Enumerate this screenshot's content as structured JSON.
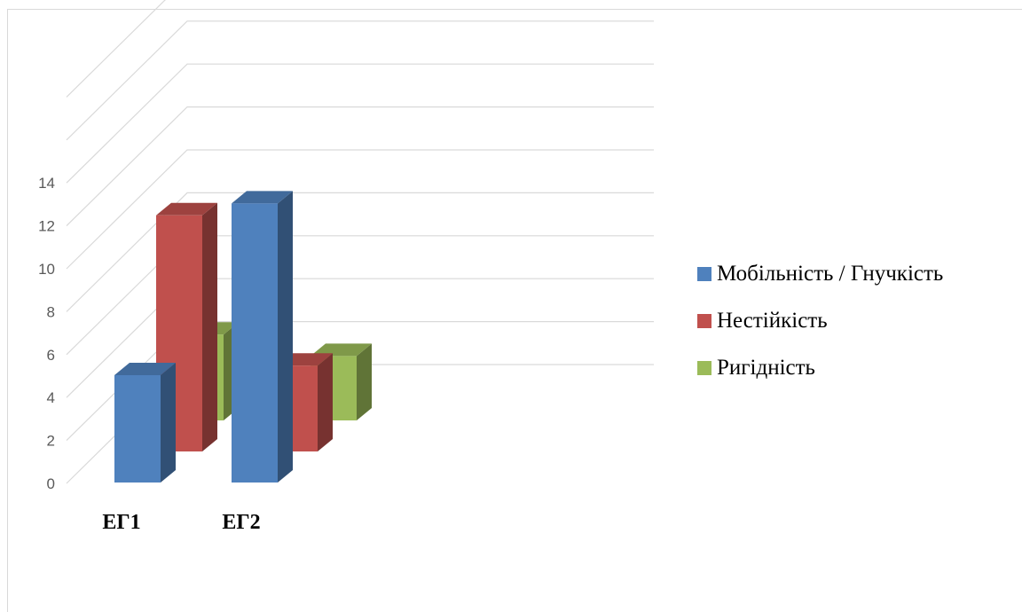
{
  "chart_data": {
    "type": "bar",
    "subtype": "3d-column",
    "categories": [
      "ЕГ1",
      "ЕГ2"
    ],
    "series": [
      {
        "name": "Мобільність / Гнучкість",
        "color": "#4f81bd",
        "values": [
          5,
          13
        ]
      },
      {
        "name": "Нестійкість",
        "color": "#c0504d",
        "values": [
          11,
          4
        ]
      },
      {
        "name": "Ригідність",
        "color": "#9bbb59",
        "values": [
          4,
          3
        ]
      }
    ],
    "y_ticks": [
      "0",
      "2",
      "4",
      "6",
      "8",
      "10",
      "12",
      "14"
    ],
    "ylim": [
      0,
      18
    ],
    "grid": true,
    "legend_position": "right"
  }
}
